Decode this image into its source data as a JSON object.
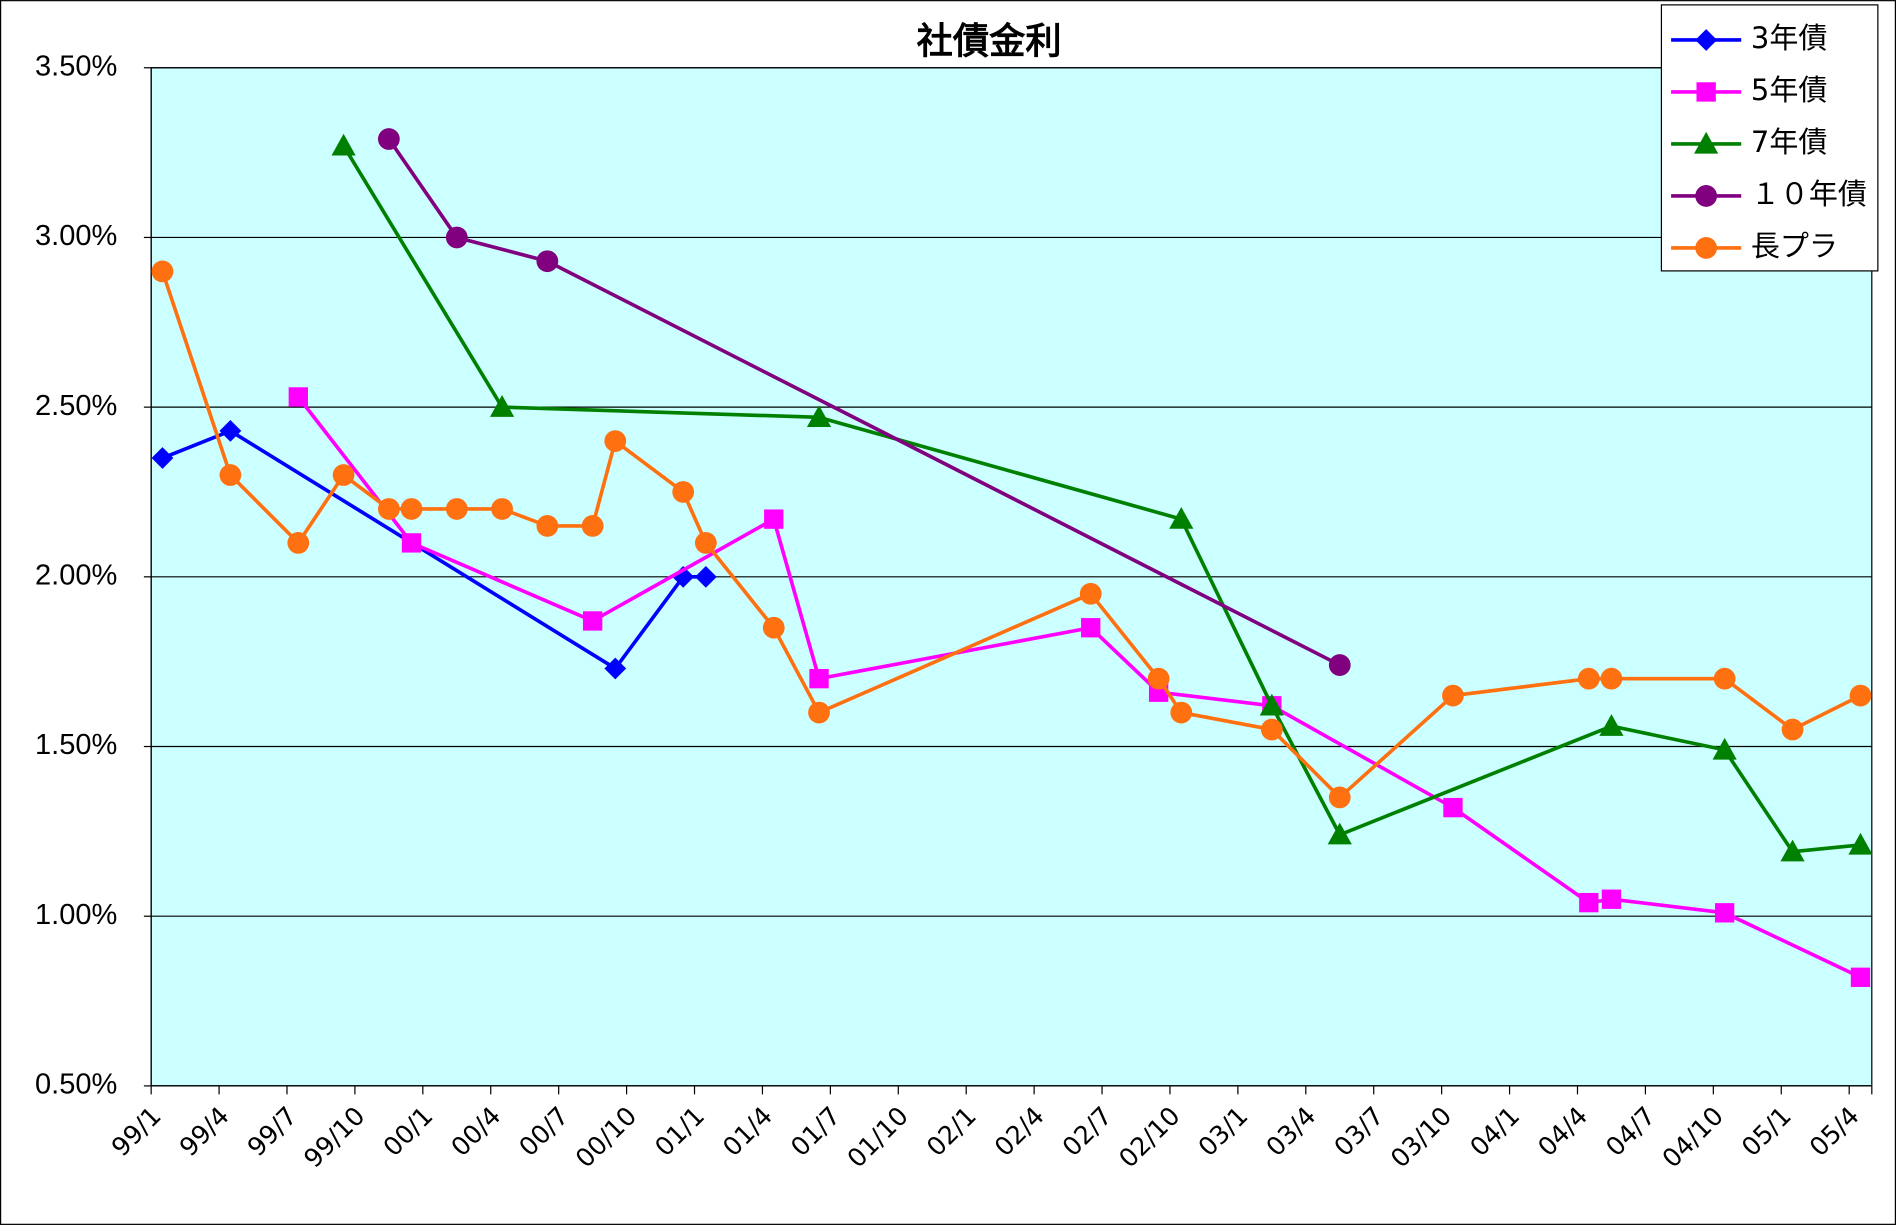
{
  "chart_data": {
    "type": "line",
    "title": "社債金利",
    "connect_gaps": true,
    "grid": true,
    "legend": "top-right",
    "background": "#ccffff",
    "ylim": [
      0.5,
      3.5
    ],
    "yticks": [
      {
        "value": 0.5,
        "label": "0.50%"
      },
      {
        "value": 1.0,
        "label": "1.00%"
      },
      {
        "value": 1.5,
        "label": "1.50%"
      },
      {
        "value": 2.0,
        "label": "2.00%"
      },
      {
        "value": 2.5,
        "label": "2.50%"
      },
      {
        "value": 3.0,
        "label": "3.00%"
      },
      {
        "value": 3.5,
        "label": "3.50%"
      }
    ],
    "categories": [
      "99/1",
      null,
      null,
      "99/4",
      null,
      null,
      "99/7",
      null,
      null,
      "99/10",
      null,
      null,
      "00/1",
      null,
      null,
      "00/4",
      null,
      null,
      "00/7",
      null,
      null,
      "00/10",
      null,
      null,
      "01/1",
      null,
      null,
      "01/4",
      null,
      null,
      "01/7",
      null,
      null,
      "01/10",
      null,
      null,
      "02/1",
      null,
      null,
      "02/4",
      null,
      null,
      "02/7",
      null,
      null,
      "02/10",
      null,
      null,
      "03/1",
      null,
      null,
      "03/4",
      null,
      null,
      "03/7",
      null,
      null,
      "03/10",
      null,
      null,
      "04/1",
      null,
      null,
      "04/4",
      null,
      null,
      "04/7",
      null,
      null,
      "04/10",
      null,
      null,
      "05/1",
      null,
      null,
      "05/4"
    ],
    "series": [
      {
        "name": "3年債",
        "color": "#0000ff",
        "marker": "diamond",
        "values": [
          2.35,
          null,
          null,
          2.43,
          null,
          null,
          null,
          null,
          null,
          null,
          null,
          null,
          null,
          null,
          null,
          null,
          null,
          null,
          null,
          null,
          1.73,
          null,
          null,
          2.0,
          2.0,
          null,
          null,
          null,
          null,
          null,
          null,
          null,
          null,
          null,
          null,
          null,
          null,
          null,
          null,
          null,
          null,
          null,
          null,
          null,
          null,
          null,
          null,
          null,
          null,
          null,
          null,
          null,
          null,
          null,
          null,
          null,
          null,
          null,
          null,
          null,
          null,
          null,
          null,
          null,
          null,
          null,
          null,
          null,
          null,
          null,
          null,
          null,
          null,
          null,
          null,
          null
        ]
      },
      {
        "name": "5年債",
        "color": "#ff00ff",
        "marker": "square",
        "values": [
          null,
          null,
          null,
          null,
          null,
          null,
          2.53,
          null,
          null,
          null,
          null,
          2.1,
          null,
          null,
          null,
          null,
          null,
          null,
          null,
          1.87,
          null,
          null,
          null,
          null,
          null,
          null,
          null,
          2.17,
          null,
          1.7,
          null,
          null,
          null,
          null,
          null,
          null,
          null,
          null,
          null,
          null,
          null,
          1.85,
          null,
          null,
          1.66,
          null,
          null,
          null,
          null,
          1.62,
          null,
          null,
          null,
          null,
          null,
          null,
          null,
          1.32,
          null,
          null,
          null,
          null,
          null,
          1.04,
          1.05,
          null,
          null,
          null,
          null,
          1.01,
          null,
          null,
          null,
          null,
          null,
          0.82
        ]
      },
      {
        "name": "7年債",
        "color": "#008000",
        "marker": "triangle",
        "values": [
          null,
          null,
          null,
          null,
          null,
          null,
          null,
          null,
          3.27,
          null,
          null,
          null,
          null,
          null,
          null,
          2.5,
          null,
          null,
          null,
          null,
          null,
          null,
          null,
          null,
          null,
          null,
          null,
          null,
          null,
          2.47,
          null,
          null,
          null,
          null,
          null,
          null,
          null,
          null,
          null,
          null,
          null,
          null,
          null,
          null,
          null,
          2.17,
          null,
          null,
          null,
          1.62,
          null,
          null,
          1.24,
          null,
          null,
          null,
          null,
          null,
          null,
          null,
          null,
          null,
          null,
          null,
          1.56,
          null,
          null,
          null,
          null,
          1.49,
          null,
          null,
          1.19,
          null,
          null,
          1.21
        ]
      },
      {
        "name": "１０年債",
        "color": "#800080",
        "marker": "circle",
        "values": [
          null,
          null,
          null,
          null,
          null,
          null,
          null,
          null,
          null,
          null,
          3.29,
          null,
          null,
          3.0,
          null,
          null,
          null,
          2.93,
          null,
          null,
          null,
          null,
          null,
          null,
          null,
          null,
          null,
          null,
          null,
          null,
          null,
          null,
          null,
          null,
          null,
          null,
          null,
          null,
          null,
          null,
          null,
          null,
          null,
          null,
          null,
          null,
          null,
          null,
          null,
          null,
          null,
          null,
          1.74,
          null,
          null,
          null,
          null,
          null,
          null,
          null,
          null,
          null,
          null,
          null,
          null,
          null,
          null,
          null,
          null,
          null,
          null,
          null,
          null,
          null,
          null,
          null
        ]
      },
      {
        "name": "長プラ",
        "color": "#ff7010",
        "marker": "circle",
        "values": [
          2.9,
          null,
          null,
          2.3,
          null,
          null,
          2.1,
          null,
          2.3,
          null,
          2.2,
          2.2,
          null,
          2.2,
          null,
          2.2,
          null,
          2.15,
          null,
          2.15,
          2.4,
          null,
          null,
          2.25,
          2.1,
          null,
          null,
          1.85,
          null,
          1.6,
          null,
          null,
          null,
          null,
          null,
          null,
          null,
          null,
          null,
          null,
          null,
          1.95,
          null,
          null,
          1.7,
          1.6,
          null,
          null,
          null,
          1.55,
          null,
          null,
          1.35,
          null,
          null,
          null,
          null,
          1.65,
          null,
          null,
          null,
          null,
          null,
          1.7,
          1.7,
          null,
          null,
          null,
          null,
          1.7,
          null,
          null,
          1.55,
          null,
          null,
          1.65
        ]
      }
    ]
  }
}
